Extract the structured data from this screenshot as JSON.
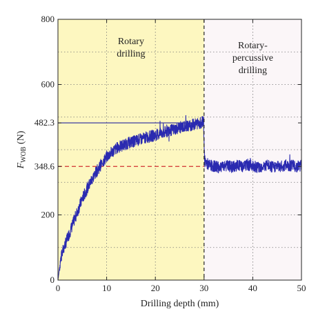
{
  "chart_data": {
    "type": "line",
    "xlabel": "Drilling depth (mm)",
    "ylabel_main": "F",
    "ylabel_sub": "WOB",
    "ylabel_unit": " (N)",
    "xlim": [
      0,
      50
    ],
    "ylim": [
      0,
      800
    ],
    "x_ticks": [
      0,
      10,
      20,
      30,
      40,
      50
    ],
    "x_tick_labels": [
      "0",
      "10",
      "20",
      "30",
      "40",
      "50"
    ],
    "y_ticks": [
      0,
      200,
      348.6,
      482.3,
      600,
      800
    ],
    "y_tick_labels": [
      "0",
      "200",
      "348.6",
      "482.3",
      "600",
      "800"
    ],
    "grid": true,
    "grid_x": [
      10,
      20,
      40
    ],
    "grid_y": [
      100,
      200,
      300,
      400,
      500,
      600,
      700
    ],
    "regions": [
      {
        "label_lines": [
          "Rotary",
          "drilling"
        ],
        "x_start": 0,
        "x_end": 30,
        "color": "#fdf7c0"
      },
      {
        "label_lines": [
          "Rotary-",
          "percussive",
          "drilling"
        ],
        "x_start": 30,
        "x_end": 50,
        "color": "#fbf6f8"
      }
    ],
    "divider_x": 30,
    "reference_lines": [
      {
        "y": 482.3,
        "x_start": 0,
        "x_end": 30,
        "color": "#3a3aa0",
        "style": "solid"
      },
      {
        "y": 348.6,
        "x_start": 0,
        "x_end": 30,
        "color": "#d03030",
        "style": "dashed"
      }
    ],
    "series": [
      {
        "color": "#2a2ab0",
        "x": [
          0,
          0.5,
          1,
          2,
          3,
          4,
          5,
          6,
          7,
          8,
          9,
          10,
          11,
          12,
          13,
          14,
          15,
          16,
          17,
          18,
          19,
          20,
          21,
          22,
          23,
          24,
          25,
          26,
          27,
          28,
          29,
          29.9,
          30.1,
          31,
          32,
          33,
          34,
          35,
          36,
          37,
          38,
          39,
          40,
          41,
          42,
          43,
          44,
          45,
          46,
          47,
          48,
          49,
          50
        ],
        "y": [
          0,
          60,
          90,
          130,
          170,
          210,
          250,
          280,
          310,
          335,
          358,
          378,
          392,
          404,
          412,
          418,
          423,
          428,
          432,
          437,
          441,
          445,
          449,
          454,
          459,
          463,
          468,
          471,
          474,
          478,
          482,
          485,
          365,
          352,
          350,
          346,
          353,
          349,
          347,
          352,
          348,
          354,
          351,
          347,
          349,
          352,
          346,
          350,
          348,
          353,
          351,
          349,
          352
        ],
        "noise_amplitude": 18
      }
    ]
  }
}
